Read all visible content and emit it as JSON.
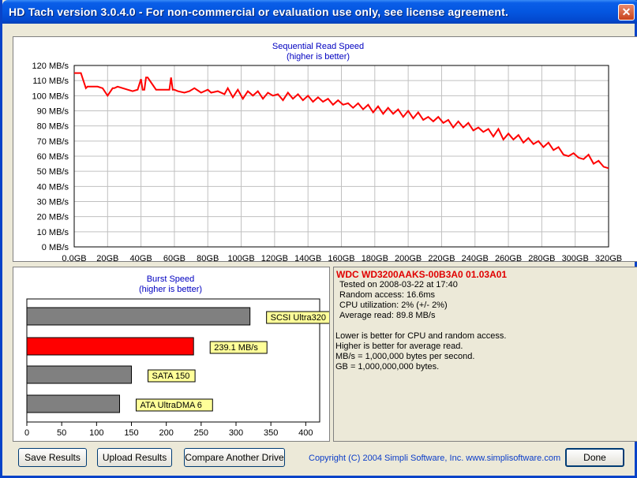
{
  "window": {
    "title": "HD Tach version 3.0.4.0  - For non-commercial or evaluation use only, see license agreement."
  },
  "seq_chart": {
    "title": "Sequential Read Speed",
    "subtitle": "(higher is better)",
    "y_ticks": [
      "0 MB/s",
      "10 MB/s",
      "20 MB/s",
      "30 MB/s",
      "40 MB/s",
      "50 MB/s",
      "60 MB/s",
      "70 MB/s",
      "80 MB/s",
      "90 MB/s",
      "100 MB/s",
      "110 MB/s",
      "120 MB/s"
    ],
    "x_ticks": [
      "0,0GB",
      "20GB",
      "40GB",
      "60GB",
      "80GB",
      "100GB",
      "120GB",
      "140GB",
      "160GB",
      "180GB",
      "200GB",
      "220GB",
      "240GB",
      "260GB",
      "280GB",
      "300GB",
      "320GB"
    ]
  },
  "burst_chart": {
    "title": "Burst Speed",
    "subtitle": "(higher is better)",
    "x_ticks": [
      "0",
      "50",
      "100",
      "150",
      "200",
      "250",
      "300",
      "350",
      "400"
    ]
  },
  "chart_data": [
    {
      "type": "line",
      "title": "Sequential Read Speed",
      "subtitle": "(higher is better)",
      "xlabel": "",
      "ylabel": "",
      "xlim": [
        0,
        320
      ],
      "ylim": [
        0,
        120
      ],
      "grid": true,
      "series": [
        {
          "color": "#ff0000",
          "x": [
            0,
            4,
            7,
            8,
            14,
            17,
            20,
            23,
            24,
            26,
            32,
            35,
            38,
            40,
            41,
            42,
            43,
            44,
            49,
            52,
            57,
            58,
            59,
            60,
            62,
            66,
            69,
            72,
            76,
            80,
            82,
            86,
            90,
            92,
            95,
            98,
            101,
            104,
            107,
            110,
            113,
            116,
            119,
            122,
            125,
            128,
            131,
            134,
            137,
            140,
            143,
            146,
            149,
            152,
            155,
            158,
            161,
            164,
            167,
            170,
            173,
            176,
            179,
            182,
            185,
            188,
            191,
            194,
            197,
            200,
            203,
            206,
            209,
            212,
            215,
            218,
            221,
            224,
            227,
            230,
            233,
            236,
            239,
            242,
            245,
            248,
            251,
            254,
            257,
            260,
            263,
            266,
            269,
            272,
            275,
            278,
            281,
            284,
            287,
            290,
            293,
            296,
            299,
            302,
            305,
            308,
            311,
            314,
            317,
            320
          ],
          "y": [
            115,
            115,
            105,
            106,
            106,
            105,
            100,
            105,
            105,
            106,
            104,
            103,
            104,
            111,
            104,
            104,
            112,
            112,
            104,
            104,
            104,
            112,
            104,
            104,
            103,
            102,
            103,
            105,
            102,
            104,
            102,
            103,
            101,
            105,
            99,
            104,
            98,
            103,
            100,
            103,
            98,
            102,
            100,
            101,
            97,
            102,
            98,
            101,
            97,
            100,
            96,
            99,
            96,
            98,
            94,
            97,
            94,
            95,
            92,
            95,
            91,
            94,
            89,
            93,
            88,
            92,
            88,
            91,
            86,
            90,
            85,
            89,
            84,
            86,
            83,
            86,
            82,
            84,
            79,
            83,
            79,
            82,
            77,
            79,
            76,
            78,
            73,
            78,
            71,
            75,
            71,
            74,
            69,
            72,
            68,
            70,
            66,
            69,
            64,
            66,
            61,
            60,
            62,
            59,
            58,
            61,
            55,
            57,
            53,
            52
          ]
        }
      ]
    },
    {
      "type": "bar",
      "title": "Burst Speed",
      "subtitle": "(higher is better)",
      "xlim": [
        0,
        420
      ],
      "categories": [
        "SCSI Ultra320",
        "239.1 MB/s",
        "SATA 150",
        "ATA UltraDMA 6"
      ],
      "values": [
        320,
        239.1,
        150,
        133
      ],
      "colors": [
        "#808080",
        "#ff0000",
        "#808080",
        "#808080"
      ]
    }
  ],
  "info": {
    "drive": "WDC WD3200AAKS-00B3A0 01.03A01",
    "tested": "Tested on 2008-03-22 at 17:40",
    "random_access": "Random access: 16.6ms",
    "cpu": "CPU utilization: 2% (+/- 2%)",
    "average": "Average read: 89.8 MB/s",
    "note1": "Lower is better for CPU and random access.",
    "note2": "Higher is better for average read.",
    "note3": "MB/s = 1,000,000 bytes per second.",
    "note4": "GB = 1,000,000,000 bytes."
  },
  "buttons": {
    "save_label": "Save Results",
    "upload_label": "Upload Results",
    "compare_label": "Compare Another Drive",
    "done_label": "Done"
  },
  "copyright": "Copyright (C) 2004 Simpli Software, Inc. www.simplisoftware.com"
}
